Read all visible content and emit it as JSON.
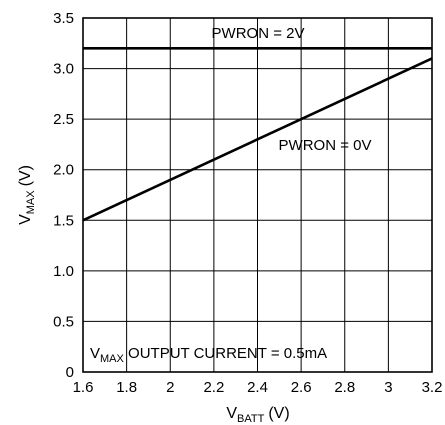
{
  "chart_data": {
    "type": "line",
    "x_axis": {
      "label_main": "V",
      "label_sub": "BATT",
      "label_unit": "(V)",
      "range": [
        1.6,
        3.2
      ],
      "ticks": [
        1.6,
        1.8,
        2.0,
        2.2,
        2.4,
        2.6,
        2.8,
        3.0,
        3.2
      ],
      "tick_labels": [
        "1.6",
        "1.8",
        "2",
        "2.2",
        "2.4",
        "2.6",
        "2.8",
        "3",
        "3.2"
      ]
    },
    "y_axis": {
      "label_main": "V",
      "label_sub": "MAX",
      "label_unit": "(V)",
      "range": [
        0,
        3.5
      ],
      "ticks": [
        0,
        0.5,
        1.0,
        1.5,
        2.0,
        2.5,
        3.0,
        3.5
      ],
      "tick_labels": [
        "0",
        "0.5",
        "1.0",
        "1.5",
        "2.0",
        "2.5",
        "3.0",
        "3.5"
      ]
    },
    "grid": true,
    "series": [
      {
        "name": "PWRON = 2V",
        "x": [
          1.6,
          3.2
        ],
        "y": [
          3.2,
          3.2
        ]
      },
      {
        "name": "PWRON = 0V",
        "x": [
          1.6,
          3.2
        ],
        "y": [
          1.5,
          3.1
        ]
      }
    ],
    "annotations": {
      "pwron_2v": "PWRON = 2V",
      "pwron_0v": "PWRON = 0V",
      "condition_main": "V",
      "condition_sub": "MAX",
      "condition_rest": " OUTPUT CURRENT = 0.5mA"
    }
  }
}
